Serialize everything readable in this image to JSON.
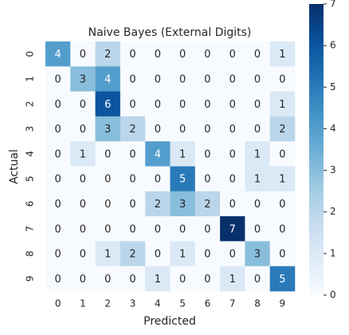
{
  "chart_data": {
    "type": "heatmap",
    "title": "Naive Bayes (External Digits)",
    "x_label": "Predicted",
    "y_label": "Actual",
    "x_categories": [
      "0",
      "1",
      "2",
      "3",
      "4",
      "5",
      "6",
      "7",
      "8",
      "9"
    ],
    "y_categories": [
      "0",
      "1",
      "2",
      "3",
      "4",
      "5",
      "6",
      "7",
      "8",
      "9"
    ],
    "values": [
      [
        4,
        0,
        2,
        0,
        0,
        0,
        0,
        0,
        0,
        1
      ],
      [
        0,
        3,
        4,
        0,
        0,
        0,
        0,
        0,
        0,
        0
      ],
      [
        0,
        0,
        6,
        0,
        0,
        0,
        0,
        0,
        0,
        1
      ],
      [
        0,
        0,
        3,
        2,
        0,
        0,
        0,
        0,
        0,
        2
      ],
      [
        0,
        1,
        0,
        0,
        4,
        1,
        0,
        0,
        1,
        0
      ],
      [
        0,
        0,
        0,
        0,
        0,
        5,
        0,
        0,
        1,
        1
      ],
      [
        0,
        0,
        0,
        0,
        2,
        3,
        2,
        0,
        0,
        0
      ],
      [
        0,
        0,
        0,
        0,
        0,
        0,
        0,
        7,
        0,
        0
      ],
      [
        0,
        0,
        1,
        2,
        0,
        1,
        0,
        0,
        3,
        0
      ],
      [
        0,
        0,
        0,
        0,
        1,
        0,
        0,
        1,
        0,
        5
      ]
    ],
    "colormap": "Blues",
    "clim": [
      0,
      7
    ],
    "cticks": [
      0,
      1,
      2,
      3,
      4,
      5,
      6,
      7
    ]
  }
}
